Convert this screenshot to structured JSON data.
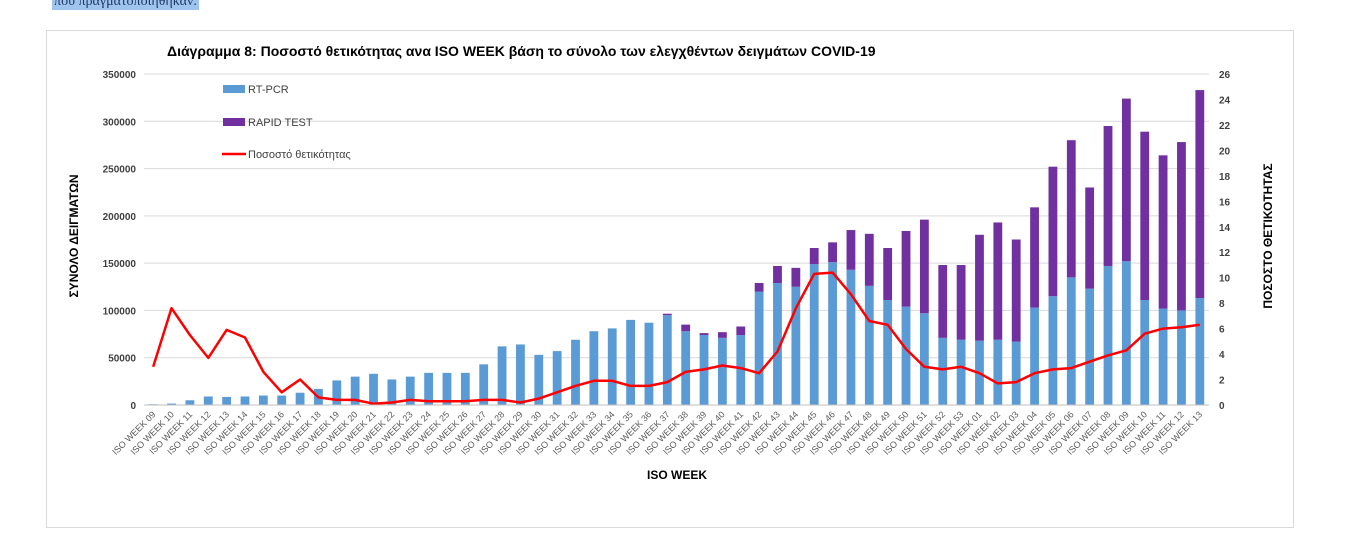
{
  "page": {
    "top_text": "που πραγματοποιήθηκαν."
  },
  "chart_data": {
    "type": "bar",
    "stacked": true,
    "title": "Διάγραμμα 8: Ποσοστό  θετικότητας ανα ISO WEEK  βάση  το σύνολο των ελεγχθέντων δειγμάτων COVID-19",
    "xlabel": "ISO WEEK",
    "ylabel": "ΣΥΝΟΛΟ ΔΕΙΓΜΑΤΩΝ",
    "y2label": "ΠΟΣΟΣΤΟ ΘΕΤΙΚΟΤΗΤΑΣ",
    "ylim": [
      0,
      350000
    ],
    "y2lim": [
      0,
      26
    ],
    "yticks": [
      0,
      50000,
      100000,
      150000,
      200000,
      250000,
      300000,
      350000
    ],
    "y2ticks": [
      0,
      2,
      4,
      6,
      8,
      10,
      12,
      14,
      16,
      18,
      20,
      22,
      24,
      26
    ],
    "grid": true,
    "legend_position": "top-left",
    "categories": [
      "ISO WEEK 09",
      "ISO WEEK 10",
      "ISO WEEK 11",
      "ISO WEEK 12",
      "ISO WEEK 13",
      "ISO WEEK 14",
      "ISO WEEK 15",
      "ISO WEEK 16",
      "ISO WEEK 17",
      "ISO WEEK 18",
      "ISO WEEK 19",
      "ISO WEEK 20",
      "ISO WEEK 21",
      "ISO WEEK 22",
      "ISO WEEK 23",
      "ISO WEEK 24",
      "ISO WEEK 25",
      "ISO WEEK 26",
      "ISO WEEK 27",
      "ISO WEEK 28",
      "ISO WEEK 29",
      "ISO WEEK 30",
      "ISO WEEK 31",
      "ISO WEEK 32",
      "ISO WEEK 33",
      "ISO WEEK 34",
      "ISO WEEK 35",
      "ISO WEEK 36",
      "ISO WEEK 37",
      "ISO WEEK 38",
      "ISO WEEK 39",
      "ISO WEEK 40",
      "ISO WEEK 41",
      "ISO WEEK 42",
      "ISO WEEK 43",
      "ISO WEEK 44",
      "ISO WEEK 45",
      "ISO WEEK 46",
      "ISO WEEK 47",
      "ISO WEEK 48",
      "ISO WEEK 49",
      "ISO WEEK 50",
      "ISO WEEK 51",
      "ISO WEEK 52",
      "ISO WEEK 53",
      "ISO WEEK 01",
      "ISO WEEK 02",
      "ISO WEEK 03",
      "ISO WEEK 04",
      "ISO WEEK 05",
      "ISO WEEK 06",
      "ISO WEEK 07",
      "ISO WEEK 08",
      "ISO WEEK 09",
      "ISO WEEK 10",
      "ISO WEEK 11",
      "ISO WEEK 12",
      "ISO WEEK 13"
    ],
    "series": [
      {
        "name": "RT-PCR",
        "kind": "bar",
        "axis": "left",
        "color": "#5b9bd5",
        "values": [
          800,
          1500,
          5000,
          9000,
          8500,
          9000,
          10000,
          10000,
          13000,
          17000,
          26000,
          30000,
          33000,
          27000,
          30000,
          34000,
          34000,
          34000,
          43000,
          62000,
          64000,
          53000,
          57000,
          69000,
          78000,
          81000,
          90000,
          87000,
          95000,
          78000,
          74000,
          71000,
          74000,
          120000,
          129000,
          125000,
          149000,
          151000,
          143000,
          126000,
          111000,
          104000,
          97000,
          71000,
          69000,
          68000,
          69000,
          67000,
          103000,
          115000,
          135000,
          123000,
          147000,
          152000,
          111000,
          102000,
          100000,
          113000
        ]
      },
      {
        "name": "RAPID TEST",
        "kind": "bar",
        "axis": "left",
        "color": "#7030a0",
        "values": [
          0,
          0,
          0,
          0,
          0,
          0,
          0,
          0,
          0,
          0,
          0,
          0,
          0,
          0,
          0,
          0,
          0,
          0,
          0,
          0,
          0,
          0,
          0,
          0,
          0,
          0,
          0,
          0,
          1500,
          7000,
          2000,
          6000,
          9000,
          9000,
          18000,
          20000,
          17000,
          21000,
          42000,
          55000,
          55000,
          80000,
          99000,
          77000,
          79000,
          112000,
          124000,
          108000,
          106000,
          137000,
          145000,
          107000,
          148000,
          172000,
          178000,
          162000,
          178000,
          220000
        ]
      },
      {
        "name": "Ποσοστό θετικότητας",
        "kind": "line",
        "axis": "right",
        "color": "#ff0000",
        "values": [
          3.0,
          7.6,
          5.5,
          3.7,
          5.9,
          5.3,
          2.6,
          1.0,
          2.0,
          0.6,
          0.4,
          0.4,
          0.1,
          0.2,
          0.4,
          0.3,
          0.3,
          0.3,
          0.4,
          0.4,
          0.2,
          0.5,
          1.0,
          1.5,
          1.9,
          1.9,
          1.5,
          1.5,
          1.8,
          2.6,
          2.8,
          3.1,
          2.9,
          2.5,
          4.2,
          7.6,
          10.3,
          10.4,
          8.7,
          6.6,
          6.3,
          4.4,
          3.0,
          2.8,
          3.0,
          2.5,
          1.7,
          1.8,
          2.5,
          2.8,
          2.9,
          3.4,
          3.9,
          4.3,
          5.6,
          6.0,
          6.1,
          6.3
        ]
      }
    ]
  }
}
